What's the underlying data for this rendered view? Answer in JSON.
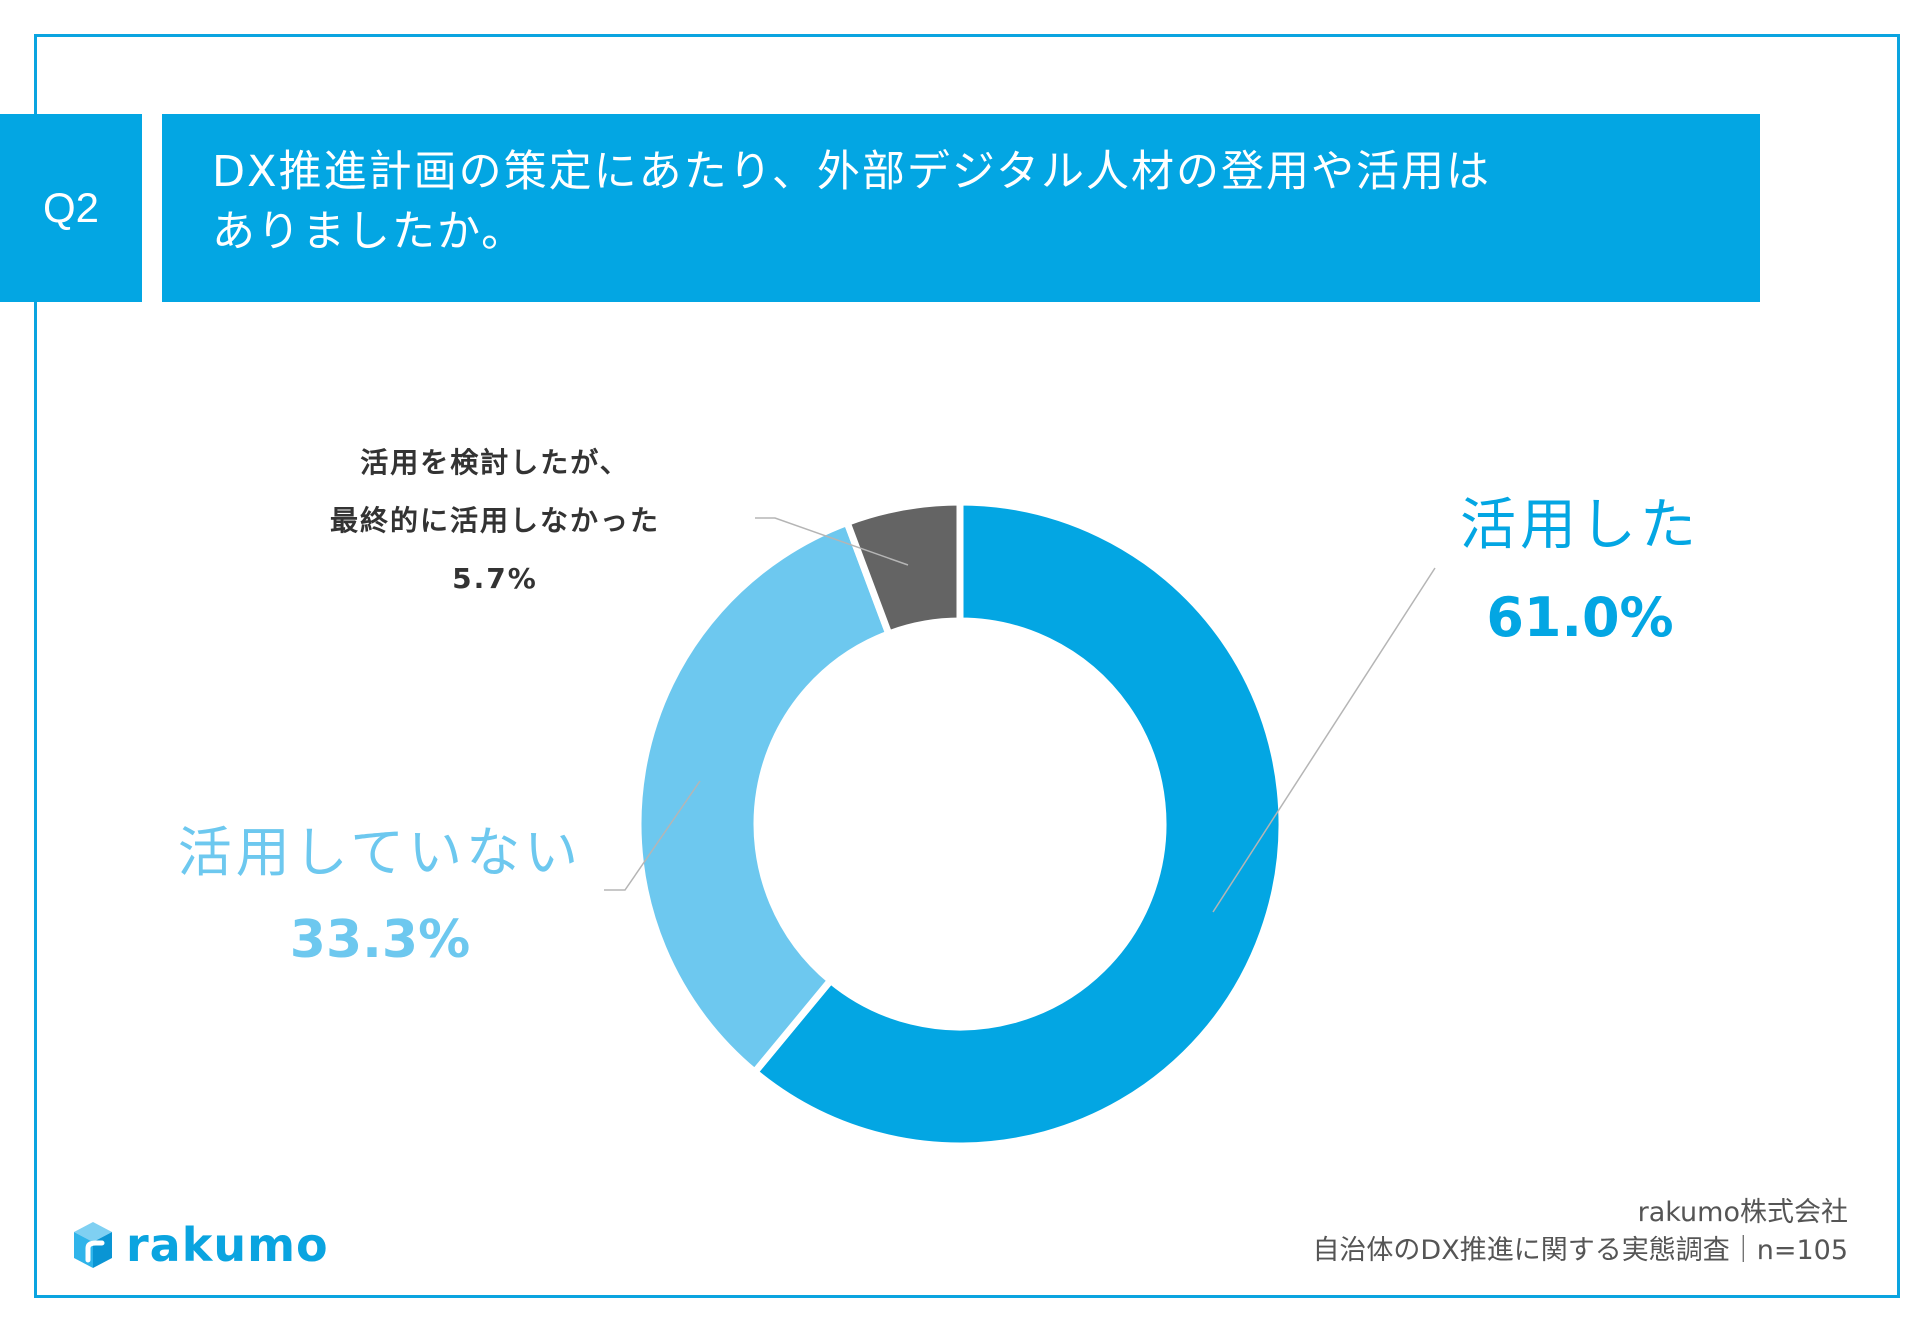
{
  "question": {
    "badge": "Q2",
    "line1": "DX推進計画の策定にあたり、外部デジタル人材の登用や活用は",
    "line2": "ありましたか。"
  },
  "chart_data": {
    "type": "pie",
    "variant": "donut",
    "title": "DX推進計画の策定にあたり、外部デジタル人材の登用や活用はありましたか。",
    "slices": [
      {
        "label": "活用した",
        "value": 61.0,
        "display": "61.0%",
        "color": "#03a6e3"
      },
      {
        "label": "活用していない",
        "value": 33.3,
        "display": "33.3%",
        "color": "#6dc8ef"
      },
      {
        "label": "活用を検討したが、最終的に活用しなかった",
        "label_line1": "活用を検討したが、",
        "label_line2": "最終的に活用しなかった",
        "value": 5.7,
        "display": "5.7%",
        "color": "#646464"
      }
    ]
  },
  "footer": {
    "company": "rakumo株式会社",
    "survey": "自治体のDX推進に関する実態調査｜n=105"
  },
  "logo": {
    "text": "rakumo",
    "color": "#0aa4e0"
  }
}
